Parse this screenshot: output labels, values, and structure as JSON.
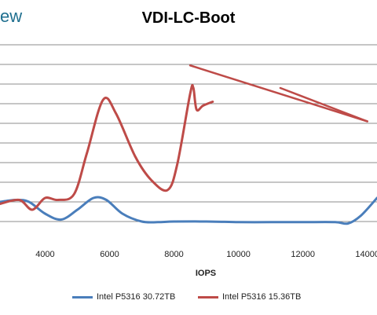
{
  "brand_text": "ew",
  "chart_data": {
    "type": "line",
    "title": "VDI-LC-Boot",
    "xlabel": "IOPS",
    "ylabel": "",
    "xlim": [
      2600,
      14300
    ],
    "ylim": [
      0,
      10
    ],
    "x_ticks": [
      4000,
      6000,
      8000,
      10000,
      12000,
      14000
    ],
    "x_tick_labels": [
      "4000",
      "6000",
      "8000",
      "10000",
      "12000",
      "14000"
    ],
    "y_gridlines": [
      1,
      2,
      3,
      4,
      5,
      6,
      7,
      8,
      9,
      10
    ],
    "grid": true,
    "legend_position": "bottom",
    "series": [
      {
        "name": "Intel P5316 30.72TB",
        "color": "#4a7ebb",
        "points": [
          [
            2600,
            2.0
          ],
          [
            3100,
            2.1
          ],
          [
            3500,
            2.0
          ],
          [
            4000,
            1.4
          ],
          [
            4500,
            1.1
          ],
          [
            5000,
            1.6
          ],
          [
            5500,
            2.2
          ],
          [
            5900,
            2.1
          ],
          [
            6400,
            1.4
          ],
          [
            7000,
            1.0
          ],
          [
            7500,
            0.97
          ],
          [
            8000,
            1.0
          ],
          [
            9000,
            1.0
          ],
          [
            10000,
            0.97
          ],
          [
            11000,
            0.97
          ],
          [
            12000,
            0.97
          ],
          [
            13000,
            0.97
          ],
          [
            13400,
            0.9
          ],
          [
            13800,
            1.3
          ],
          [
            14300,
            2.2
          ]
        ]
      },
      {
        "name": "Intel P5316 15.36TB",
        "color": "#be4b48",
        "points": [
          [
            2600,
            1.9
          ],
          [
            3200,
            2.1
          ],
          [
            3600,
            1.6
          ],
          [
            4000,
            2.2
          ],
          [
            4400,
            2.1
          ],
          [
            4900,
            2.4
          ],
          [
            5300,
            4.5
          ],
          [
            5800,
            7.2
          ],
          [
            6200,
            6.5
          ],
          [
            6800,
            4.3
          ],
          [
            7300,
            3.1
          ],
          [
            7800,
            2.6
          ],
          [
            8100,
            3.9
          ],
          [
            8500,
            7.5
          ],
          [
            8600,
            7.8
          ],
          [
            8700,
            6.7
          ],
          [
            8900,
            6.9
          ],
          [
            9200,
            7.1
          ]
        ]
      }
    ],
    "annotations": [
      {
        "type": "arrow",
        "color": "#be4b48",
        "from": [
          14000,
          6.1
        ],
        "to": [
          8500,
          8.95
        ],
        "tail_branch": [
          11300,
          7.8
        ]
      }
    ]
  }
}
